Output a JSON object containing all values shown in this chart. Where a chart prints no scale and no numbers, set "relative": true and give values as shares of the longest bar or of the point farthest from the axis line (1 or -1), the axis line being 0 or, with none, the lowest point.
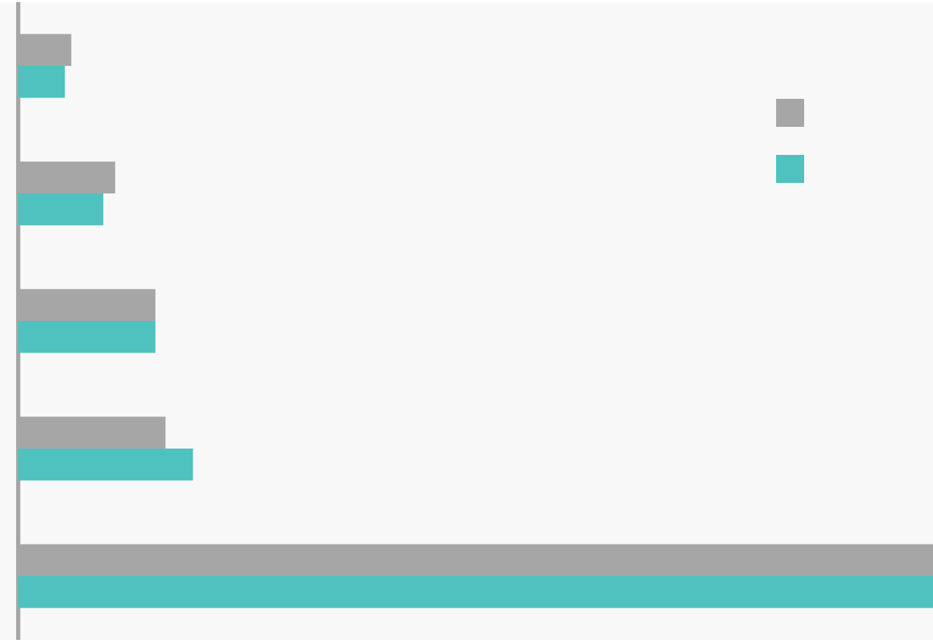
{
  "chart_data": {
    "type": "bar",
    "orientation": "horizontal",
    "relative": true,
    "categories": [
      null,
      null,
      null,
      null,
      null
    ],
    "series": [
      {
        "color": "#a6a6a6",
        "values": [
          0.058,
          0.106,
          0.15,
          0.161,
          1
        ]
      },
      {
        "color": "#4fc1bf",
        "values": [
          0.051,
          0.093,
          0.15,
          0.191,
          1
        ]
      }
    ]
  }
}
